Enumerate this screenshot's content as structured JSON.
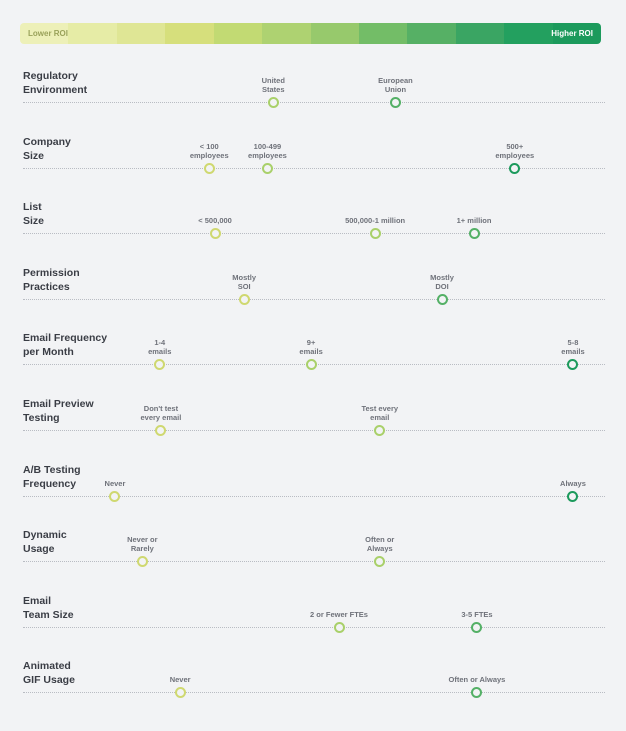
{
  "scale": {
    "lower_label": "Lower ROI",
    "higher_label": "Higher ROI",
    "segments": [
      "#edf0b8",
      "#e6eca6",
      "#dfe695",
      "#d6df7c",
      "#c2da73",
      "#aed271",
      "#97c96c",
      "#73bd67",
      "#56b065",
      "#3aa563",
      "#23a05f",
      "#1c9a5c"
    ]
  },
  "legend_colors": {
    "low": "#cbd66a",
    "mid": "#86c160",
    "high": "#1f9b5e"
  },
  "rows": [
    {
      "label": "Regulatory\nEnvironment",
      "points": [
        {
          "text": "United\nStates",
          "position": 0.43,
          "tier": "mid-low"
        },
        {
          "text": "European\nUnion",
          "position": 0.64,
          "tier": "mid"
        }
      ]
    },
    {
      "label": "Company\nSize",
      "points": [
        {
          "text": "< 100\nemployees",
          "position": 0.32,
          "tier": "low"
        },
        {
          "text": "100-499\nemployees",
          "position": 0.42,
          "tier": "mid-low"
        },
        {
          "text": "500+\nemployees",
          "position": 0.845,
          "tier": "high"
        }
      ]
    },
    {
      "label": "List\nSize",
      "points": [
        {
          "text": "< 500,000",
          "position": 0.33,
          "tier": "low"
        },
        {
          "text": "500,000-1 million",
          "position": 0.605,
          "tier": "mid-low"
        },
        {
          "text": "1+ million",
          "position": 0.775,
          "tier": "mid"
        }
      ]
    },
    {
      "label": "Permission\nPractices",
      "points": [
        {
          "text": "Mostly\nSOI",
          "position": 0.38,
          "tier": "low"
        },
        {
          "text": "Mostly\nDOI",
          "position": 0.72,
          "tier": "mid"
        }
      ]
    },
    {
      "label": "Email Frequency\nper Month",
      "points": [
        {
          "text": "1-4\nemails",
          "position": 0.235,
          "tier": "low"
        },
        {
          "text": "9+\nemails",
          "position": 0.495,
          "tier": "mid-low"
        },
        {
          "text": "5-8\nemails",
          "position": 0.945,
          "tier": "high"
        }
      ]
    },
    {
      "label": "Email Preview\nTesting",
      "points": [
        {
          "text": "Don't test\nevery email",
          "position": 0.237,
          "tier": "low"
        },
        {
          "text": "Test every\nemail",
          "position": 0.613,
          "tier": "mid-low"
        }
      ]
    },
    {
      "label": "A/B Testing\nFrequency",
      "points": [
        {
          "text": "Never",
          "position": 0.158,
          "tier": "low"
        },
        {
          "text": "Always",
          "position": 0.945,
          "tier": "high"
        }
      ]
    },
    {
      "label": "Dynamic\nUsage",
      "points": [
        {
          "text": "Never or\nRarely",
          "position": 0.205,
          "tier": "low"
        },
        {
          "text": "Often or\nAlways",
          "position": 0.613,
          "tier": "mid-low"
        }
      ]
    },
    {
      "label": "Email\nTeam Size",
      "points": [
        {
          "text": "2 or Fewer FTEs",
          "position": 0.543,
          "tier": "mid-low"
        },
        {
          "text": "3-5 FTEs",
          "position": 0.78,
          "tier": "mid"
        }
      ]
    },
    {
      "label": "Animated\nGIF Usage",
      "points": [
        {
          "text": "Never",
          "position": 0.27,
          "tier": "low"
        },
        {
          "text": "Often or Always",
          "position": 0.78,
          "tier": "mid"
        }
      ]
    }
  ]
}
